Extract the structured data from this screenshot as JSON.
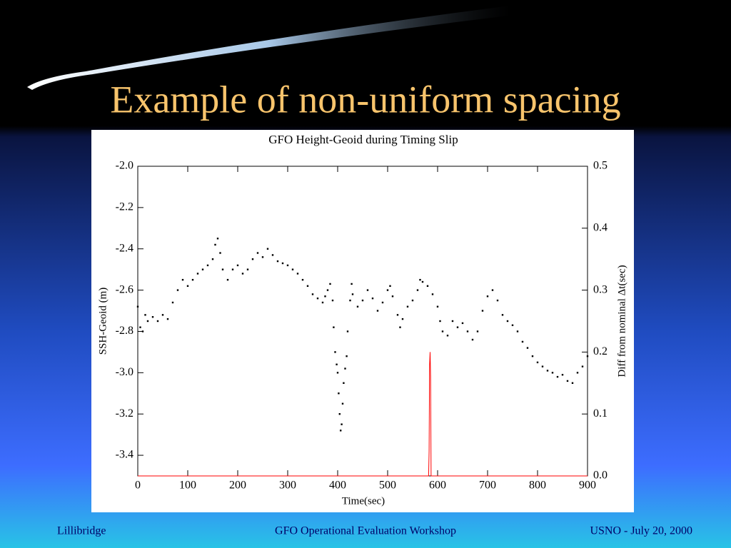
{
  "slide": {
    "title": "Example of non-uniform spacing"
  },
  "footer": {
    "left": "Lillibridge",
    "center": "GFO Operational Evaluation Workshop",
    "right": "USNO - July 20, 2000"
  },
  "chart_data": {
    "type": "scatter",
    "title": "GFO Height-Geoid during Timing Slip",
    "x_label": "Time(sec)",
    "y_label": "SSH-Geoid (m)",
    "y2_label": "Diff from nominal Δt(sec)",
    "xlim": [
      0,
      900
    ],
    "xticks": [
      0,
      100,
      200,
      300,
      400,
      500,
      600,
      700,
      800,
      900
    ],
    "ylim": [
      -3.5,
      -2.0
    ],
    "yticks": [
      {
        "value": -2.0,
        "label": "-2.0"
      },
      -2.2,
      -2.4,
      -2.6,
      -2.8,
      {
        "value": -3.0,
        "label": "-3.0"
      },
      -3.2,
      -3.4
    ],
    "y2lim": [
      0,
      0.5
    ],
    "y2ticks": [
      {
        "value": 0,
        "label": "0.0"
      },
      0.1,
      0.2,
      0.3,
      0.4,
      {
        "value": 0.5,
        "label": "0.5"
      }
    ],
    "series": [
      {
        "color": "#000000",
        "x": [
          0,
          5,
          10,
          15,
          20,
          30,
          40,
          50,
          60,
          70,
          80,
          90,
          100,
          110,
          120,
          130,
          140,
          150,
          155,
          160,
          165,
          170,
          180,
          190,
          200,
          210,
          220,
          230,
          240,
          250,
          260,
          270,
          280,
          290,
          300,
          310,
          320,
          330,
          340,
          350,
          360,
          370,
          375,
          380,
          385,
          390,
          392,
          395,
          398,
          400,
          402,
          404,
          406,
          408,
          410,
          412,
          415,
          418,
          420,
          425,
          428,
          430,
          440,
          450,
          460,
          470,
          480,
          490,
          500,
          505,
          510,
          520,
          525,
          530,
          540,
          550,
          560,
          565,
          570,
          580,
          590,
          600,
          605,
          610,
          620,
          630,
          640,
          650,
          660,
          670,
          680,
          690,
          700,
          710,
          720,
          730,
          740,
          750,
          760,
          770,
          780,
          790,
          800,
          810,
          820,
          830,
          840,
          850,
          860,
          870,
          880,
          890,
          900
        ],
        "values": [
          -2.68,
          -2.78,
          -2.8,
          -2.72,
          -2.75,
          -2.73,
          -2.75,
          -2.72,
          -2.74,
          -2.66,
          -2.6,
          -2.55,
          -2.58,
          -2.55,
          -2.52,
          -2.5,
          -2.48,
          -2.45,
          -2.38,
          -2.35,
          -2.42,
          -2.5,
          -2.55,
          -2.5,
          -2.48,
          -2.52,
          -2.5,
          -2.45,
          -2.42,
          -2.44,
          -2.4,
          -2.43,
          -2.46,
          -2.47,
          -2.48,
          -2.5,
          -2.52,
          -2.55,
          -2.58,
          -2.62,
          -2.64,
          -2.66,
          -2.63,
          -2.6,
          -2.57,
          -2.65,
          -2.78,
          -2.9,
          -2.96,
          -3.0,
          -3.1,
          -3.2,
          -3.28,
          -3.25,
          -3.15,
          -3.05,
          -2.98,
          -2.92,
          -2.8,
          -2.65,
          -2.57,
          -2.62,
          -2.68,
          -2.65,
          -2.6,
          -2.64,
          -2.7,
          -2.66,
          -2.6,
          -2.58,
          -2.63,
          -2.72,
          -2.78,
          -2.74,
          -2.68,
          -2.65,
          -2.6,
          -2.55,
          -2.56,
          -2.58,
          -2.62,
          -2.68,
          -2.75,
          -2.8,
          -2.82,
          -2.75,
          -2.78,
          -2.76,
          -2.8,
          -2.84,
          -2.8,
          -2.7,
          -2.63,
          -2.6,
          -2.65,
          -2.72,
          -2.75,
          -2.77,
          -2.8,
          -2.85,
          -2.88,
          -2.92,
          -2.95,
          -2.97,
          -2.99,
          -3.0,
          -3.02,
          -3.01,
          -3.04,
          -3.05,
          -3.0,
          -2.97,
          -2.92
        ]
      },
      {
        "color": "#ff0000",
        "axis": "y2",
        "x": [
          0,
          582,
          583,
          584,
          585,
          586,
          587,
          900
        ],
        "values": [
          0,
          0,
          0.04,
          0.18,
          0.2,
          0.16,
          0,
          0
        ]
      }
    ]
  }
}
